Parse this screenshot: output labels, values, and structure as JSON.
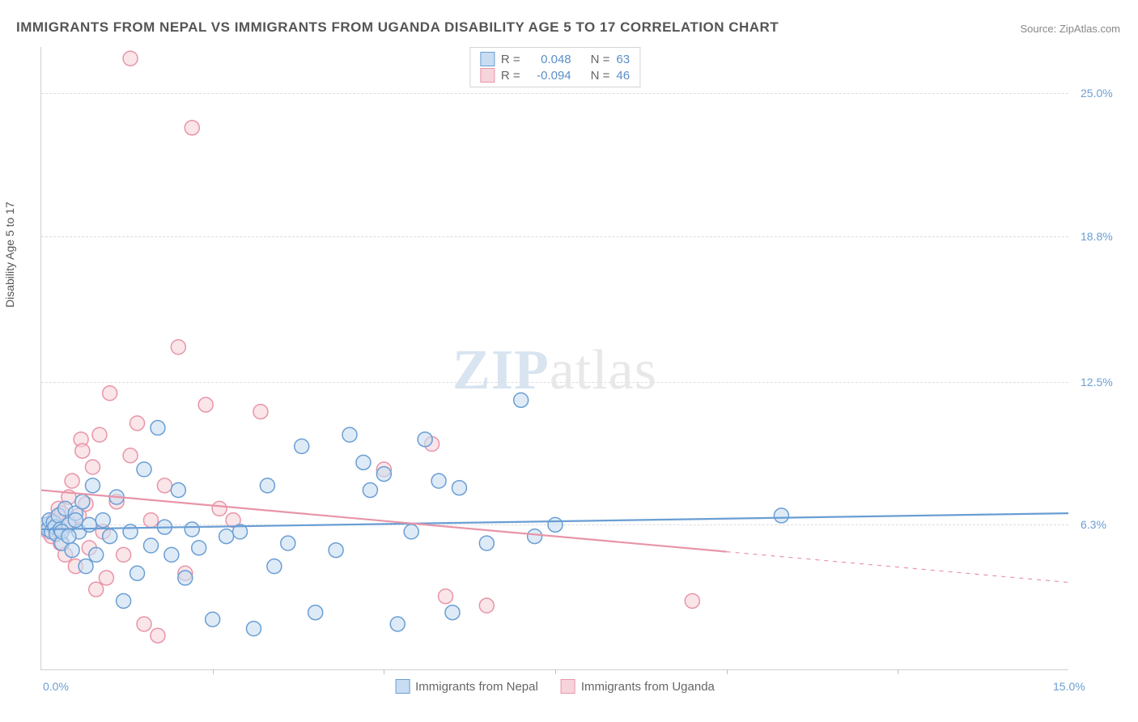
{
  "title": "IMMIGRANTS FROM NEPAL VS IMMIGRANTS FROM UGANDA DISABILITY AGE 5 TO 17 CORRELATION CHART",
  "source": "Source: ZipAtlas.com",
  "y_axis_label": "Disability Age 5 to 17",
  "watermark_a": "ZIP",
  "watermark_b": "atlas",
  "chart": {
    "type": "scatter",
    "xlim": [
      0,
      15
    ],
    "ylim": [
      0,
      27
    ],
    "x_ticks": [
      0,
      2.5,
      5,
      7.5,
      10,
      12.5,
      15
    ],
    "x_tick_labels": [
      "0.0%",
      "",
      "",
      "",
      "",
      "",
      "15.0%"
    ],
    "y_grid": [
      6.3,
      12.5,
      18.8,
      25.0
    ],
    "y_tick_labels": [
      "6.3%",
      "12.5%",
      "18.8%",
      "25.0%"
    ],
    "background_color": "#ffffff",
    "grid_color": "#dcdcdc",
    "axis_color": "#d0d0d0",
    "tick_label_color": "#6a9ed4",
    "text_color": "#555555",
    "marker_radius": 9,
    "marker_stroke_width": 1.5,
    "marker_fill_opacity": 0.25,
    "line_width": 2.2
  },
  "series": [
    {
      "name": "Immigrants from Nepal",
      "color": "#6a9ed4",
      "fill": "#c8ddf2",
      "R": "0.048",
      "N": "63",
      "regression": {
        "x1": 0,
        "y1": 6.1,
        "x2": 15,
        "y2": 6.8,
        "dash_from_x": 15
      },
      "points": [
        [
          0.05,
          6.3
        ],
        [
          0.1,
          6.1
        ],
        [
          0.12,
          6.5
        ],
        [
          0.15,
          6.0
        ],
        [
          0.18,
          6.4
        ],
        [
          0.2,
          6.2
        ],
        [
          0.22,
          5.9
        ],
        [
          0.25,
          6.7
        ],
        [
          0.28,
          6.1
        ],
        [
          0.3,
          5.5
        ],
        [
          0.35,
          7.0
        ],
        [
          0.4,
          6.3
        ],
        [
          0.45,
          5.2
        ],
        [
          0.5,
          6.8
        ],
        [
          0.55,
          6.0
        ],
        [
          0.6,
          7.3
        ],
        [
          0.65,
          4.5
        ],
        [
          0.7,
          6.3
        ],
        [
          0.75,
          8.0
        ],
        [
          0.8,
          5.0
        ],
        [
          0.9,
          6.5
        ],
        [
          1.0,
          5.8
        ],
        [
          1.1,
          7.5
        ],
        [
          1.2,
          3.0
        ],
        [
          1.3,
          6.0
        ],
        [
          1.4,
          4.2
        ],
        [
          1.5,
          8.7
        ],
        [
          1.6,
          5.4
        ],
        [
          1.7,
          10.5
        ],
        [
          1.8,
          6.2
        ],
        [
          1.9,
          5.0
        ],
        [
          2.0,
          7.8
        ],
        [
          2.1,
          4.0
        ],
        [
          2.2,
          6.1
        ],
        [
          2.3,
          5.3
        ],
        [
          2.5,
          2.2
        ],
        [
          2.7,
          5.8
        ],
        [
          2.9,
          6.0
        ],
        [
          3.1,
          1.8
        ],
        [
          3.3,
          8.0
        ],
        [
          3.4,
          4.5
        ],
        [
          3.6,
          5.5
        ],
        [
          3.8,
          9.7
        ],
        [
          4.0,
          2.5
        ],
        [
          4.3,
          5.2
        ],
        [
          4.5,
          10.2
        ],
        [
          4.7,
          9.0
        ],
        [
          4.8,
          7.8
        ],
        [
          5.0,
          8.5
        ],
        [
          5.2,
          2.0
        ],
        [
          5.4,
          6.0
        ],
        [
          5.6,
          10.0
        ],
        [
          5.8,
          8.2
        ],
        [
          6.0,
          2.5
        ],
        [
          6.1,
          7.9
        ],
        [
          6.5,
          5.5
        ],
        [
          7.0,
          11.7
        ],
        [
          7.2,
          5.8
        ],
        [
          7.5,
          6.3
        ],
        [
          10.8,
          6.7
        ],
        [
          0.3,
          6.0
        ],
        [
          0.4,
          5.8
        ],
        [
          0.5,
          6.5
        ]
      ]
    },
    {
      "name": "Immigrants from Uganda",
      "color": "#e895a8",
      "fill": "#f6d4db",
      "R": "-0.094",
      "N": "46",
      "regression": {
        "x1": 0,
        "y1": 7.8,
        "x2": 15,
        "y2": 3.8,
        "dash_from_x": 10
      },
      "points": [
        [
          0.1,
          6.0
        ],
        [
          0.12,
          6.3
        ],
        [
          0.15,
          5.8
        ],
        [
          0.18,
          6.5
        ],
        [
          0.2,
          6.1
        ],
        [
          0.25,
          7.0
        ],
        [
          0.28,
          5.5
        ],
        [
          0.3,
          6.8
        ],
        [
          0.32,
          6.2
        ],
        [
          0.35,
          5.0
        ],
        [
          0.4,
          7.5
        ],
        [
          0.45,
          8.2
        ],
        [
          0.5,
          4.5
        ],
        [
          0.55,
          6.7
        ],
        [
          0.58,
          10.0
        ],
        [
          0.6,
          9.5
        ],
        [
          0.65,
          7.2
        ],
        [
          0.7,
          5.3
        ],
        [
          0.75,
          8.8
        ],
        [
          0.8,
          3.5
        ],
        [
          0.85,
          10.2
        ],
        [
          0.9,
          6.0
        ],
        [
          0.95,
          4.0
        ],
        [
          1.0,
          12.0
        ],
        [
          1.1,
          7.3
        ],
        [
          1.2,
          5.0
        ],
        [
          1.3,
          9.3
        ],
        [
          1.4,
          10.7
        ],
        [
          1.5,
          2.0
        ],
        [
          1.6,
          6.5
        ],
        [
          1.7,
          1.5
        ],
        [
          1.8,
          8.0
        ],
        [
          2.0,
          14.0
        ],
        [
          2.1,
          4.2
        ],
        [
          2.2,
          23.5
        ],
        [
          1.3,
          26.5
        ],
        [
          2.4,
          11.5
        ],
        [
          2.6,
          7.0
        ],
        [
          2.8,
          6.5
        ],
        [
          3.2,
          11.2
        ],
        [
          5.0,
          8.7
        ],
        [
          5.7,
          9.8
        ],
        [
          5.9,
          3.2
        ],
        [
          6.5,
          2.8
        ],
        [
          9.5,
          3.0
        ],
        [
          0.4,
          6.4
        ]
      ]
    }
  ],
  "legend_top": {
    "R_label": "R =",
    "N_label": "N ="
  }
}
